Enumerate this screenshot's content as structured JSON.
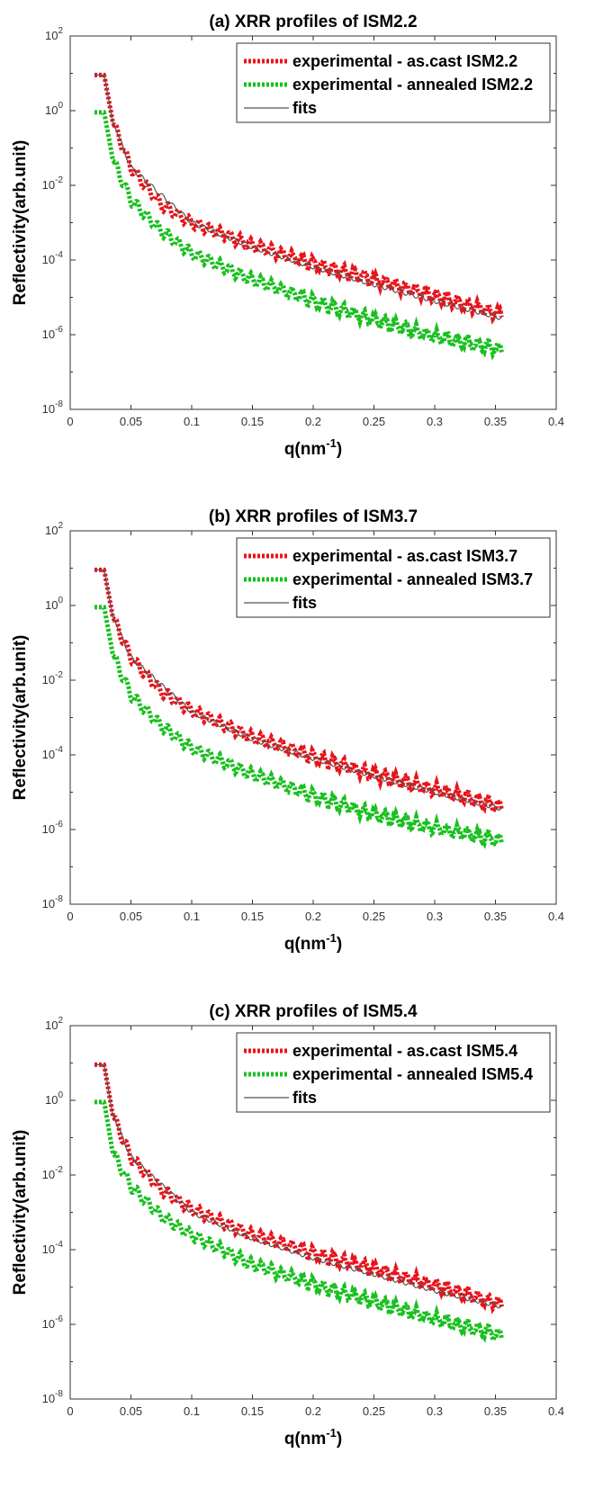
{
  "chart_data": [
    {
      "type": "line",
      "title": "(a) XRR profiles of ISM2.2",
      "xlabel": "q(nm-1)",
      "ylabel": "Reflectivity(arb.unit)",
      "xlim": [
        0,
        0.4
      ],
      "ylim": [
        1e-08,
        100
      ],
      "yscale": "log",
      "xticks": [
        "0",
        "0.05",
        "0.1",
        "0.15",
        "0.2",
        "0.25",
        "0.3",
        "0.35",
        "0.4"
      ],
      "yticks": [
        "10^-8",
        "10^-6",
        "10^-4",
        "10^-2",
        "10^0",
        "10^2"
      ],
      "legend_position": "top-right",
      "series": [
        {
          "name": "experimental - as.cast ISM2.2",
          "color": "#e8141b",
          "style": "dotted",
          "x": [
            0.02,
            0.028,
            0.035,
            0.05,
            0.075,
            0.1,
            0.15,
            0.2,
            0.25,
            0.3,
            0.355
          ],
          "y": [
            9,
            9,
            0.5,
            0.03,
            0.003,
            0.001,
            0.00025,
            8e-05,
            3e-05,
            1.1e-05,
            3.5e-06
          ]
        },
        {
          "name": "experimental - annealed ISM2.2",
          "color": "#19c01f",
          "style": "dotted",
          "x": [
            0.02,
            0.028,
            0.035,
            0.05,
            0.075,
            0.1,
            0.15,
            0.2,
            0.25,
            0.3,
            0.355
          ],
          "y": [
            0.9,
            0.9,
            0.05,
            0.004,
            0.0006,
            0.00015,
            3e-05,
            8e-06,
            2.5e-06,
            9e-07,
            4e-07
          ]
        },
        {
          "name": "fits",
          "color": "#555555",
          "style": "solid",
          "x": [
            0.02,
            0.028,
            0.035,
            0.05,
            0.1,
            0.15,
            0.2,
            0.25,
            0.3,
            0.355
          ],
          "y": [
            9,
            9,
            0.5,
            0.03,
            0.001,
            0.00022,
            6.5e-05,
            2.2e-05,
            8e-06,
            2.8e-06
          ]
        }
      ]
    },
    {
      "type": "line",
      "title": "(b) XRR profiles of ISM3.7",
      "xlabel": "q(nm-1)",
      "ylabel": "Reflectivity(arb.unit)",
      "xlim": [
        0,
        0.4
      ],
      "ylim": [
        1e-08,
        100
      ],
      "yscale": "log",
      "xticks": [
        "0",
        "0.05",
        "0.1",
        "0.15",
        "0.2",
        "0.25",
        "0.3",
        "0.35",
        "0.4"
      ],
      "yticks": [
        "10^-8",
        "10^-6",
        "10^-4",
        "10^-2",
        "10^0",
        "10^2"
      ],
      "legend_position": "top-right",
      "series": [
        {
          "name": "experimental - as.cast ISM3.7",
          "color": "#e8141b",
          "style": "dotted",
          "x": [
            0.02,
            0.028,
            0.035,
            0.05,
            0.075,
            0.1,
            0.15,
            0.2,
            0.25,
            0.3,
            0.355
          ],
          "y": [
            9,
            9,
            0.5,
            0.04,
            0.005,
            0.0015,
            0.0003,
            9e-05,
            3e-05,
            1.2e-05,
            4e-06
          ]
        },
        {
          "name": "experimental - annealed ISM3.7",
          "color": "#19c01f",
          "style": "dotted",
          "x": [
            0.02,
            0.028,
            0.035,
            0.05,
            0.075,
            0.1,
            0.15,
            0.2,
            0.25,
            0.3,
            0.355
          ],
          "y": [
            0.9,
            0.9,
            0.05,
            0.004,
            0.0006,
            0.00015,
            3e-05,
            8e-06,
            2.5e-06,
            1.1e-06,
            5e-07
          ]
        },
        {
          "name": "fits",
          "color": "#555555",
          "style": "solid",
          "x": [
            0.02,
            0.028,
            0.035,
            0.05,
            0.1,
            0.15,
            0.2,
            0.25,
            0.3,
            0.355
          ],
          "y": [
            9,
            9,
            0.5,
            0.04,
            0.0014,
            0.00026,
            8e-05,
            2.7e-05,
            1e-05,
            3.6e-06
          ]
        }
      ]
    },
    {
      "type": "line",
      "title": "(c) XRR profiles of ISM5.4",
      "xlabel": "q(nm-1)",
      "ylabel": "Reflectivity(arb.unit)",
      "xlim": [
        0,
        0.4
      ],
      "ylim": [
        1e-08,
        100
      ],
      "yscale": "log",
      "xticks": [
        "0",
        "0.05",
        "0.1",
        "0.15",
        "0.2",
        "0.25",
        "0.3",
        "0.35",
        "0.4"
      ],
      "yticks": [
        "10^-8",
        "10^-6",
        "10^-4",
        "10^-2",
        "10^0",
        "10^2"
      ],
      "legend_position": "top-right",
      "series": [
        {
          "name": "experimental - as.cast ISM5.4",
          "color": "#e8141b",
          "style": "dotted",
          "x": [
            0.02,
            0.028,
            0.035,
            0.05,
            0.075,
            0.1,
            0.15,
            0.2,
            0.25,
            0.3,
            0.355
          ],
          "y": [
            9,
            9,
            0.4,
            0.03,
            0.004,
            0.0012,
            0.00025,
            8e-05,
            3e-05,
            1.1e-05,
            3.5e-06
          ]
        },
        {
          "name": "experimental - annealed ISM5.4",
          "color": "#19c01f",
          "style": "dotted",
          "x": [
            0.02,
            0.028,
            0.035,
            0.05,
            0.075,
            0.1,
            0.15,
            0.2,
            0.25,
            0.3,
            0.355
          ],
          "y": [
            0.9,
            0.9,
            0.04,
            0.005,
            0.0008,
            0.00025,
            4e-05,
            1.2e-05,
            4e-06,
            1.4e-06,
            5e-07
          ]
        },
        {
          "name": "fits",
          "color": "#555555",
          "style": "solid",
          "x": [
            0.02,
            0.028,
            0.035,
            0.05,
            0.1,
            0.15,
            0.2,
            0.25,
            0.3,
            0.355
          ],
          "y": [
            9,
            9,
            0.4,
            0.03,
            0.001,
            0.0002,
            6e-05,
            2.2e-05,
            8e-06,
            3e-06
          ]
        }
      ]
    }
  ]
}
